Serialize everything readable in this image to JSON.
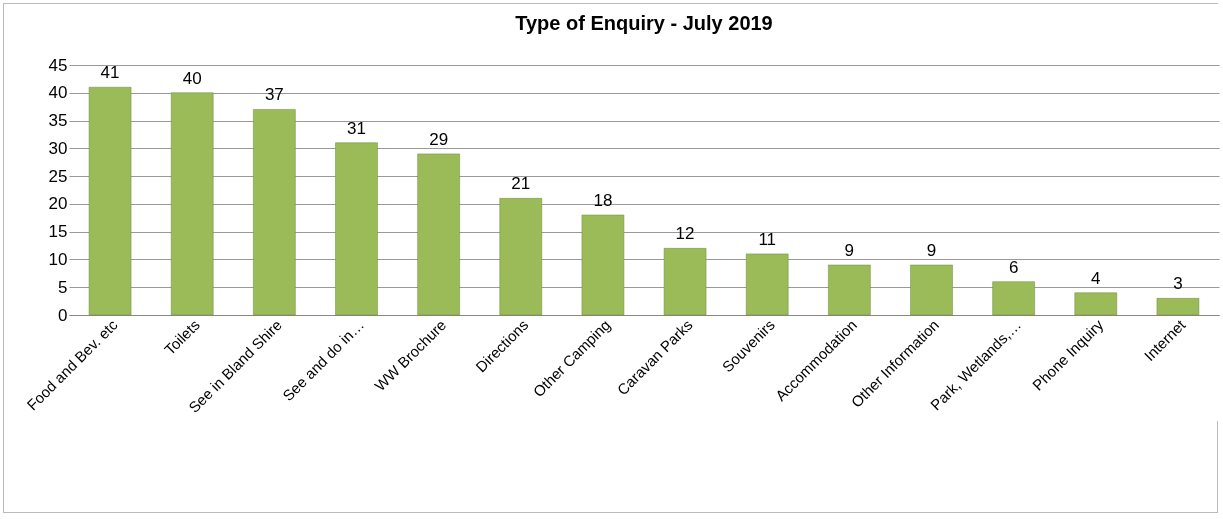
{
  "chart_data": {
    "type": "bar",
    "title": "Type of Enquiry - July 2019",
    "categories": [
      "Food and Bev. etc",
      "Toilets",
      "See in Bland Shire",
      "See and do in…",
      "WW Brochure",
      "Directions",
      "Other Camping",
      "Caravan Parks",
      "Souvenirs",
      "Accommodation",
      "Other Information",
      "Park, Wetlands,…",
      "Phone Inquiry",
      "Internet"
    ],
    "values": [
      41,
      40,
      37,
      31,
      29,
      21,
      18,
      12,
      11,
      9,
      9,
      6,
      4,
      3
    ],
    "color": "#9bbb59",
    "ylim": [
      0,
      45
    ],
    "yticks": [
      0,
      5,
      10,
      15,
      20,
      25,
      30,
      35,
      40,
      45
    ],
    "grid": "y",
    "data_labels": true
  }
}
